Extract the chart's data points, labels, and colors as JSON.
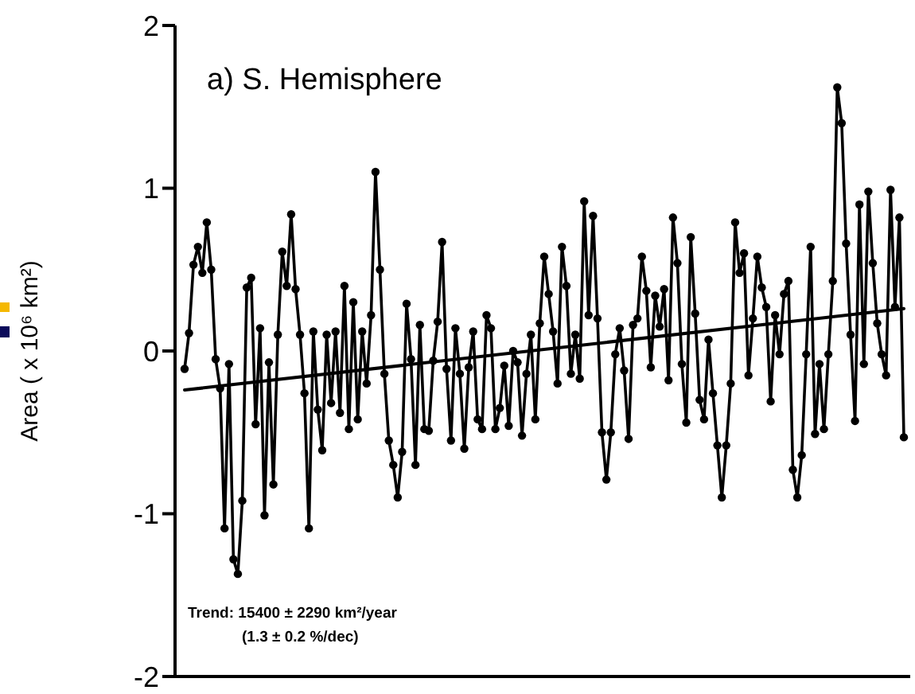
{
  "chart_data": {
    "type": "line",
    "title": "a) S. Hemisphere",
    "ylabel": "Area ( x 10⁶ km²)",
    "annotations": [
      "Trend: 15400 ± 2290  km²/year",
      "(1.3 ± 0.2  %/dec)"
    ],
    "ylim": [
      -2,
      2
    ],
    "yticks": [
      -2,
      -1,
      0,
      1,
      2
    ],
    "tick_labels": "y",
    "categories": [
      null,
      null,
      null,
      null,
      null,
      null,
      null,
      null,
      null,
      null,
      null,
      null,
      null,
      null,
      null,
      null,
      null,
      null,
      null,
      null,
      null,
      null,
      null,
      null,
      null,
      null,
      null,
      null,
      null,
      null,
      null,
      null,
      null,
      null,
      null,
      null,
      null,
      null,
      null,
      null,
      null,
      null,
      null,
      null,
      null,
      null,
      null,
      null,
      null,
      null,
      null,
      null,
      null,
      null,
      null,
      null,
      null,
      null,
      null,
      null,
      null,
      null,
      null,
      null,
      null,
      null,
      null,
      null,
      null,
      null,
      null,
      null,
      null,
      null,
      null,
      null,
      null,
      null,
      null,
      null,
      null,
      null,
      null,
      null,
      null,
      null,
      null,
      null,
      null,
      null,
      null,
      null,
      null,
      null,
      null,
      null,
      null,
      null,
      null,
      null,
      null,
      null,
      null,
      null,
      null,
      null,
      null,
      null,
      null,
      null,
      null,
      null,
      null,
      null,
      null,
      null,
      null,
      null,
      null,
      null,
      null,
      null,
      null,
      null,
      null,
      null,
      null,
      null,
      null,
      null,
      null,
      null,
      null,
      null,
      null,
      null,
      null,
      null,
      null,
      null,
      null,
      null,
      null,
      null,
      null,
      null,
      null,
      null,
      null,
      null,
      null,
      null,
      null,
      null,
      null,
      null,
      null,
      null,
      null,
      null,
      null,
      null,
      null
    ],
    "series": [
      {
        "color": "#000000",
        "marker": "circle",
        "values": [
          -0.11,
          0.11,
          0.53,
          0.64,
          0.48,
          0.79,
          0.5,
          -0.05,
          -0.23,
          -1.09,
          -0.08,
          -1.28,
          -1.37,
          -0.92,
          0.39,
          0.45,
          -0.45,
          0.14,
          -1.01,
          -0.07,
          -0.82,
          0.1,
          0.61,
          0.4,
          0.84,
          0.38,
          0.1,
          -0.26,
          -1.09,
          0.12,
          -0.36,
          -0.61,
          0.1,
          -0.32,
          0.12,
          -0.38,
          0.4,
          -0.48,
          0.3,
          -0.42,
          0.12,
          -0.2,
          0.22,
          1.1,
          0.5,
          -0.14,
          -0.55,
          -0.7,
          -0.9,
          -0.62,
          0.29,
          -0.05,
          -0.7,
          0.16,
          -0.48,
          -0.49,
          -0.06,
          0.18,
          0.67,
          -0.11,
          -0.55,
          0.14,
          -0.14,
          -0.6,
          -0.1,
          0.12,
          -0.42,
          -0.48,
          0.22,
          0.14,
          -0.48,
          -0.35,
          -0.09,
          -0.46,
          0,
          -0.07,
          -0.52,
          -0.14,
          0.1,
          -0.42,
          0.17,
          0.58,
          0.35,
          0.12,
          -0.2,
          0.64,
          0.4,
          -0.14,
          0.1,
          -0.17,
          0.92,
          0.22,
          0.83,
          0.2,
          -0.5,
          -0.79,
          -0.5,
          -0.02,
          0.14,
          -0.12,
          -0.54,
          0.16,
          0.2,
          0.58,
          0.37,
          -0.1,
          0.34,
          0.15,
          0.38,
          -0.18,
          0.82,
          0.54,
          -0.08,
          -0.44,
          0.7,
          0.23,
          -0.3,
          -0.42,
          0.07,
          -0.26,
          -0.58,
          -0.9,
          -0.58,
          -0.2,
          0.79,
          0.48,
          0.6,
          -0.15,
          0.2,
          0.58,
          0.39,
          0.27,
          -0.31,
          0.22,
          -0.02,
          0.35,
          0.43,
          -0.73,
          -0.9,
          -0.64,
          -0.02,
          0.64,
          -0.51,
          -0.08,
          -0.48,
          -0.02,
          0.43,
          1.62,
          1.4,
          0.66,
          0.1,
          -0.43,
          0.9,
          -0.08,
          0.98,
          0.54,
          0.17,
          -0.02,
          -0.15,
          0.99,
          0.27,
          0.82,
          -0.53
        ]
      },
      {
        "color": "#000000",
        "marker": "none",
        "values": [
          -0.24,
          null,
          null,
          null,
          null,
          null,
          null,
          null,
          null,
          null,
          null,
          null,
          null,
          null,
          null,
          null,
          null,
          null,
          null,
          null,
          null,
          null,
          null,
          null,
          null,
          null,
          null,
          null,
          null,
          null,
          null,
          null,
          null,
          null,
          null,
          null,
          null,
          null,
          null,
          null,
          null,
          null,
          null,
          null,
          null,
          null,
          null,
          null,
          null,
          null,
          null,
          null,
          null,
          null,
          null,
          null,
          null,
          null,
          null,
          null,
          null,
          null,
          null,
          null,
          null,
          null,
          null,
          null,
          null,
          null,
          null,
          null,
          null,
          null,
          null,
          null,
          null,
          null,
          null,
          null,
          null,
          null,
          null,
          null,
          null,
          null,
          null,
          null,
          null,
          null,
          null,
          null,
          null,
          null,
          null,
          null,
          null,
          null,
          null,
          null,
          null,
          null,
          null,
          null,
          null,
          null,
          null,
          null,
          null,
          null,
          null,
          null,
          null,
          null,
          null,
          null,
          null,
          null,
          null,
          null,
          null,
          null,
          null,
          null,
          null,
          null,
          null,
          null,
          null,
          null,
          null,
          null,
          null,
          null,
          null,
          null,
          null,
          null,
          null,
          null,
          null,
          null,
          null,
          null,
          null,
          null,
          null,
          null,
          null,
          null,
          null,
          null,
          null,
          null,
          null,
          null,
          null,
          null,
          null,
          null,
          null,
          null,
          0.26
        ]
      }
    ]
  }
}
